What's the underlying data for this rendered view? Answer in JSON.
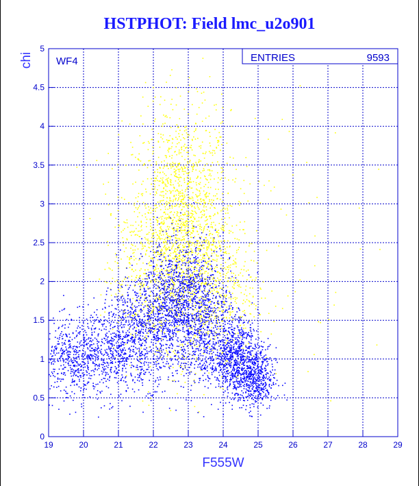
{
  "title": "HSTPHOT: Field lmc_u2o901",
  "chart_data": {
    "type": "scatter",
    "title": "HSTPHOT: Field lmc_u2o901",
    "xlabel": "F555W",
    "ylabel": "chi",
    "xlim": [
      19,
      29
    ],
    "ylim": [
      0,
      5
    ],
    "xticks": [
      "19",
      "20",
      "21",
      "22",
      "23",
      "24",
      "25",
      "26",
      "27",
      "28",
      "29"
    ],
    "yticks": [
      "0",
      "0.5",
      "1",
      "1.5",
      "2",
      "2.5",
      "3",
      "3.5",
      "4",
      "4.5",
      "5"
    ],
    "grid": true,
    "panel_label": "WF4",
    "stats_box": {
      "label": "ENTRIES",
      "value": "9593",
      "position": "top-right"
    },
    "series_colors": {
      "bright": "#0000ff",
      "faint": "#ffff00"
    },
    "series": [
      {
        "color_role": "bright",
        "approx_density": [
          {
            "x": 19.6,
            "y": 1.0,
            "sx": 0.45,
            "sy": 0.25,
            "n": 450
          },
          {
            "x": 20.6,
            "y": 1.1,
            "sx": 0.45,
            "sy": 0.3,
            "n": 450
          },
          {
            "x": 21.6,
            "y": 1.35,
            "sx": 0.45,
            "sy": 0.35,
            "n": 650
          },
          {
            "x": 22.6,
            "y": 1.7,
            "sx": 0.45,
            "sy": 0.4,
            "n": 900
          },
          {
            "x": 23.4,
            "y": 1.55,
            "sx": 0.4,
            "sy": 0.45,
            "n": 700
          },
          {
            "x": 24.3,
            "y": 1.05,
            "sx": 0.35,
            "sy": 0.25,
            "n": 750
          },
          {
            "x": 24.9,
            "y": 0.75,
            "sx": 0.3,
            "sy": 0.2,
            "n": 500
          }
        ]
      },
      {
        "color_role": "faint",
        "approx_density": [
          {
            "x": 22.8,
            "y": 2.7,
            "sx": 0.7,
            "sy": 0.75,
            "n": 1700
          },
          {
            "x": 23.8,
            "y": 1.9,
            "sx": 0.6,
            "sy": 0.5,
            "n": 450
          },
          {
            "x": 21.8,
            "y": 2.1,
            "sx": 0.6,
            "sy": 0.55,
            "n": 350
          },
          {
            "x": 24.5,
            "y": 2.5,
            "sx": 1.6,
            "sy": 1.1,
            "n": 90
          }
        ]
      }
    ]
  }
}
